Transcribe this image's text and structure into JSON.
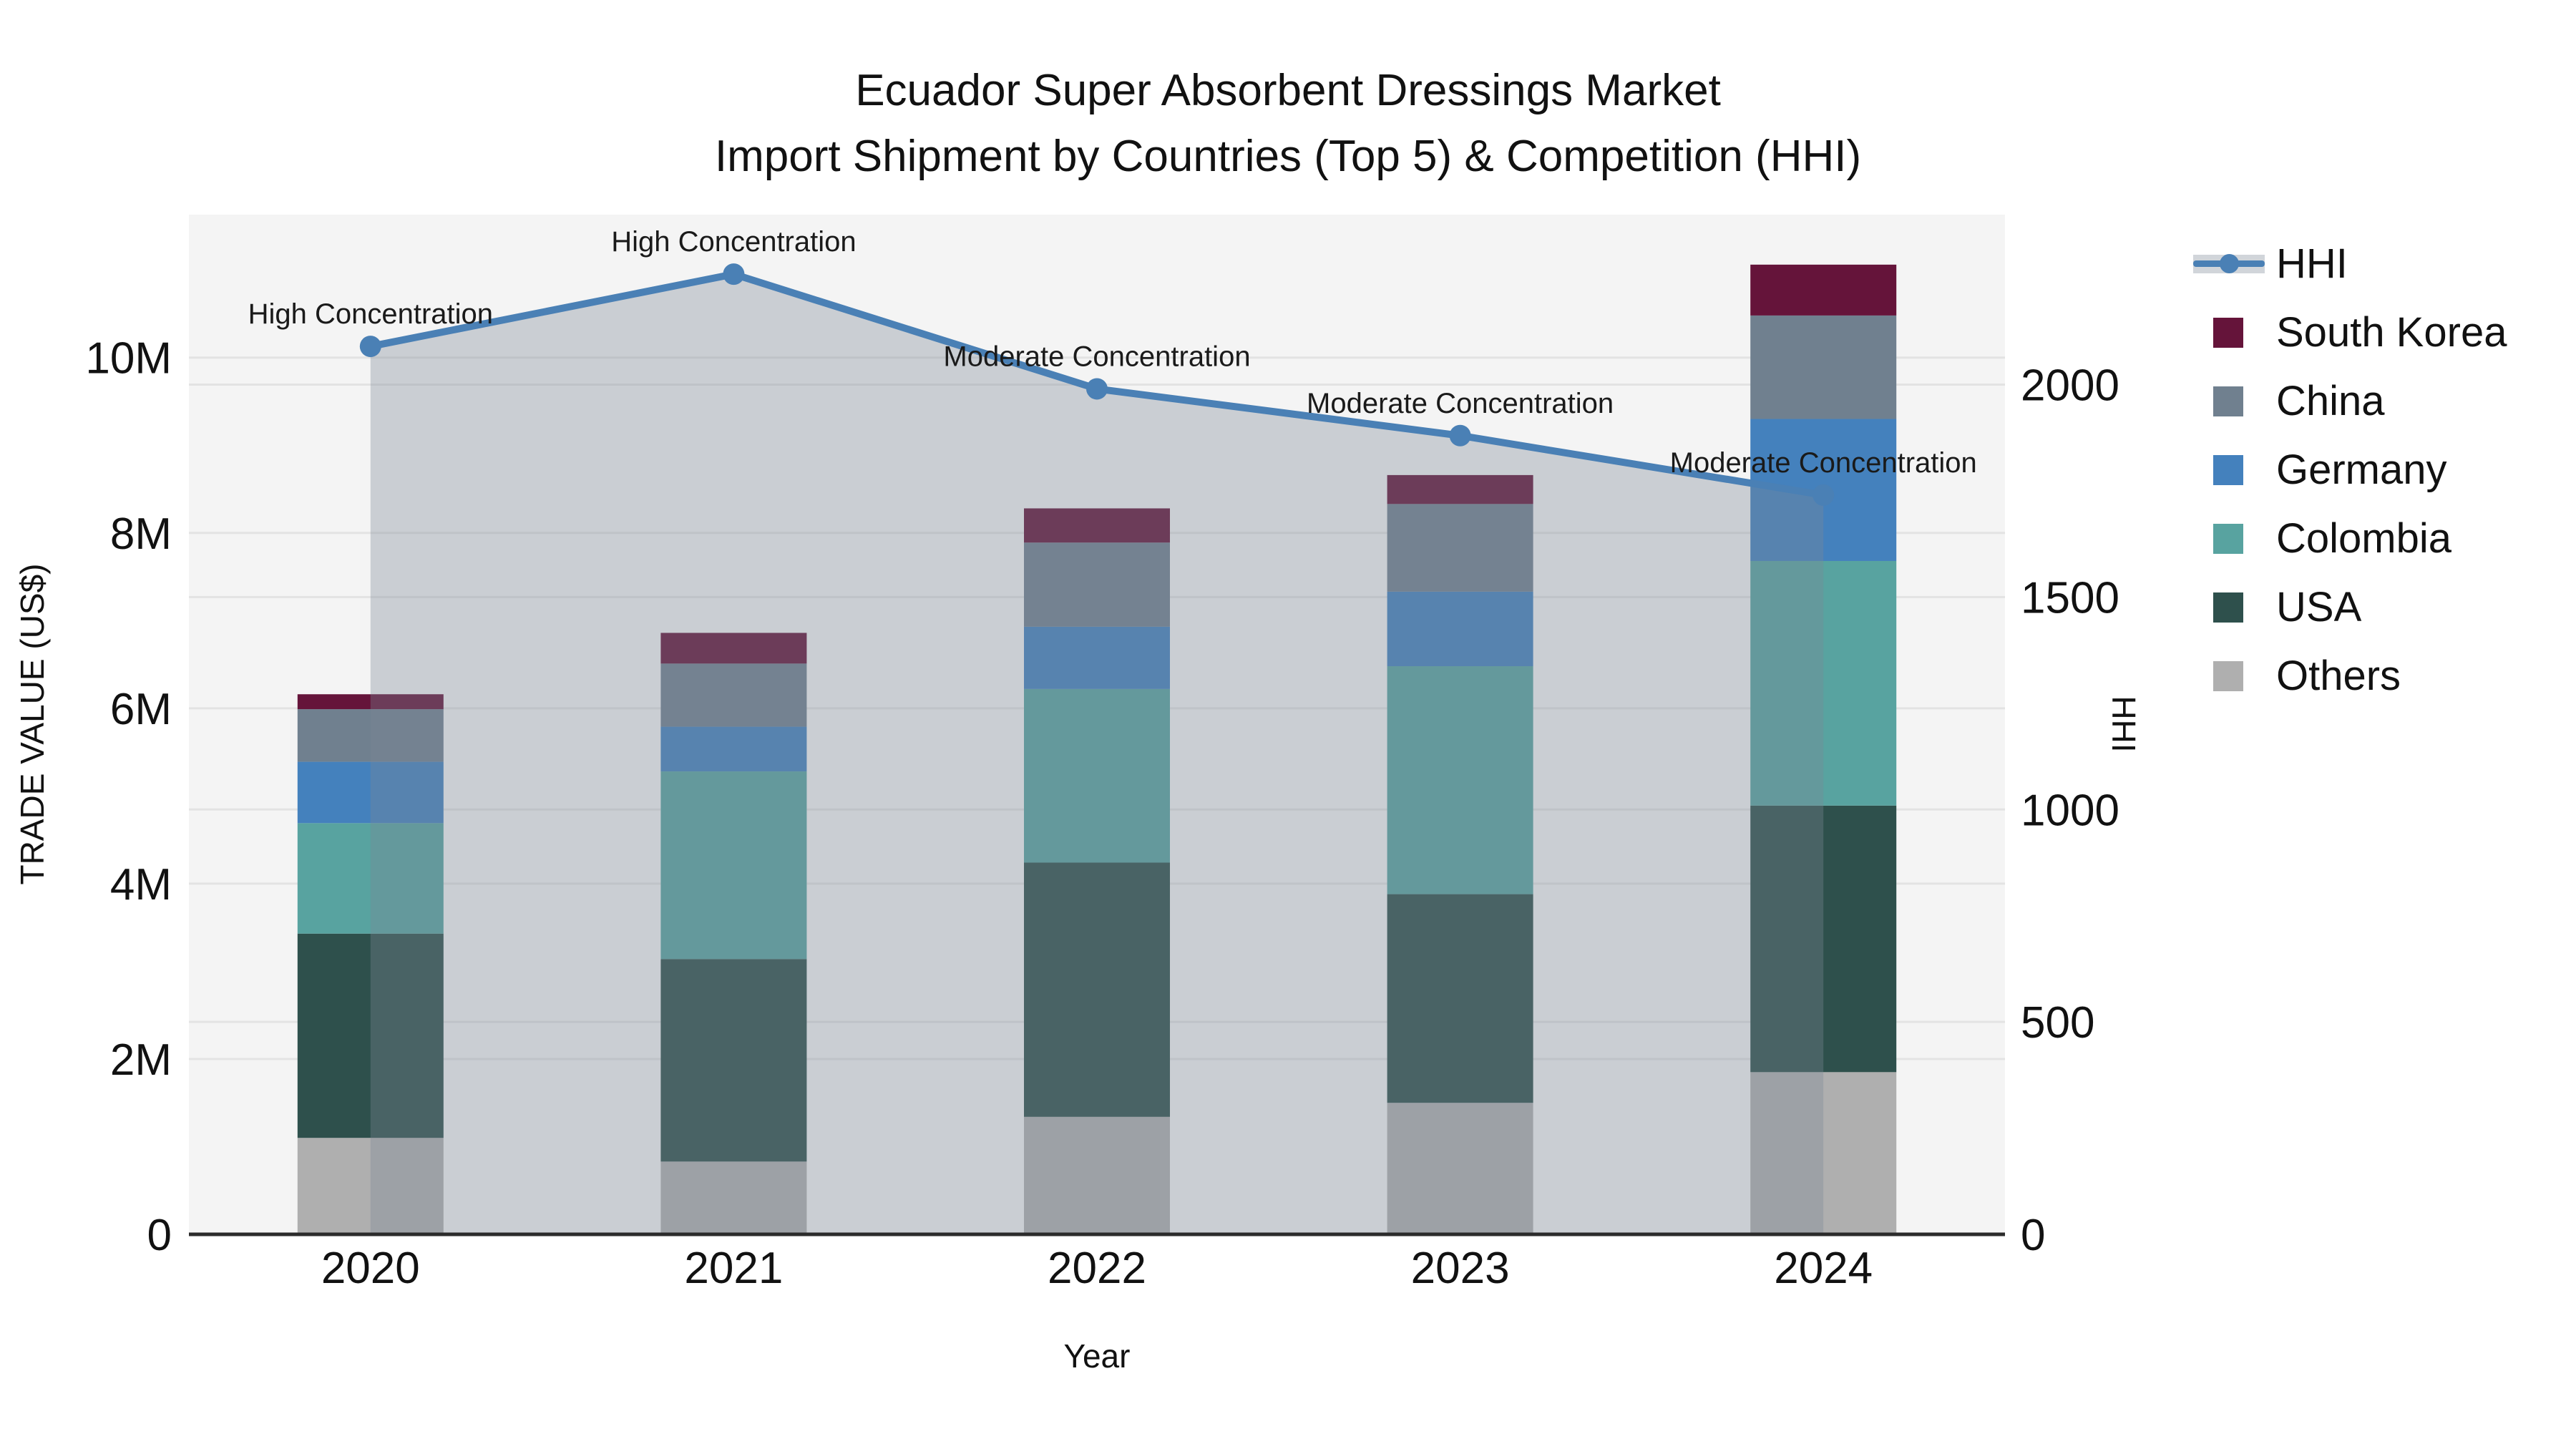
{
  "figure": {
    "title_line1": "Ecuador Super Absorbent Dressings Market",
    "title_line2": "Import Shipment by Countries (Top 5) & Competition (HHI)"
  },
  "chart_data": {
    "type": [
      "bar",
      "line"
    ],
    "title": "Ecuador Super Absorbent Dressings Market Import Shipment by Countries (Top 5) & Competition (HHI)",
    "xlabel": "Year",
    "ylabel_left": "TRADE VALUE (US$)",
    "ylabel_right": "HHI",
    "categories": [
      "2020",
      "2021",
      "2022",
      "2023",
      "2024"
    ],
    "bar_series_bottom_to_top": [
      {
        "name": "Others",
        "color": "#AFAFAF",
        "values_musd": [
          1.1,
          0.83,
          1.34,
          1.5,
          1.85
        ]
      },
      {
        "name": "USA",
        "color": "#2E504C",
        "values_musd": [
          2.33,
          2.31,
          2.9,
          2.38,
          3.04
        ]
      },
      {
        "name": "Colombia",
        "color": "#58A3A0",
        "values_musd": [
          1.26,
          2.14,
          1.98,
          2.6,
          2.79
        ]
      },
      {
        "name": "Germany",
        "color": "#4481BD",
        "values_musd": [
          0.7,
          0.51,
          0.71,
          0.85,
          1.62
        ]
      },
      {
        "name": "China",
        "color": "#70808F",
        "values_musd": [
          0.6,
          0.72,
          0.96,
          1.0,
          1.18
        ]
      },
      {
        "name": "South Korea",
        "color": "#65143A",
        "values_musd": [
          0.17,
          0.35,
          0.39,
          0.33,
          0.58
        ]
      }
    ],
    "bar_totals_musd": [
      6.16,
      6.86,
      8.28,
      8.66,
      11.06
    ],
    "hhi_series": {
      "name": "HHI",
      "line_color": "#4A80B5",
      "area_fill": "rgba(124,134,150,0.35)",
      "values": [
        2090,
        2260,
        1990,
        1880,
        1740
      ],
      "annotations": [
        "High Concentration",
        "High Concentration",
        "Moderate Concentration",
        "Moderate Concentration",
        "Moderate Concentration"
      ]
    },
    "left_axis": {
      "label": "TRADE VALUE (US$)",
      "tick_labels": [
        "0",
        "2M",
        "4M",
        "6M",
        "8M",
        "10M"
      ],
      "tick_values_musd": [
        0,
        2,
        4,
        6,
        8,
        10
      ],
      "range_musd": [
        0,
        11.63
      ],
      "grid": true
    },
    "right_axis": {
      "label": "HHI",
      "tick_labels": [
        "0",
        "500",
        "1000",
        "1500",
        "2000"
      ],
      "tick_values": [
        0,
        500,
        1000,
        1500,
        2000
      ],
      "range": [
        0,
        2400
      ],
      "grid": true
    },
    "x_axis": {
      "label": "Year",
      "tick_labels": [
        "2020",
        "2021",
        "2022",
        "2023",
        "2024"
      ]
    },
    "legend": {
      "position": "right",
      "items": [
        {
          "label": "HHI",
          "type": "line",
          "color": "#4A80B5",
          "band_color": "#d1d5da"
        },
        {
          "label": "South Korea",
          "type": "swatch",
          "color": "#65143A"
        },
        {
          "label": "China",
          "type": "swatch",
          "color": "#70808F"
        },
        {
          "label": "Germany",
          "type": "swatch",
          "color": "#4481BD"
        },
        {
          "label": "Colombia",
          "type": "swatch",
          "color": "#58A3A0"
        },
        {
          "label": "USA",
          "type": "swatch",
          "color": "#2E504C"
        },
        {
          "label": "Others",
          "type": "swatch",
          "color": "#AFAFAF"
        }
      ]
    },
    "style": {
      "plot_bg": "#F4F4F4",
      "grid_color": "#E3E3E3",
      "axis_line_color": "#2B2B2B",
      "text_color": "#111111",
      "annotation_color": "#1A1A1A"
    }
  }
}
